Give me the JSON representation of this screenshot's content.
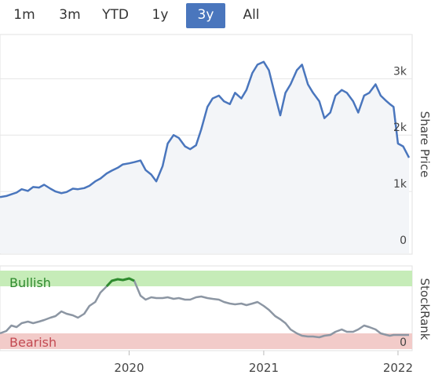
{
  "range_tabs": [
    {
      "label": "1m",
      "active": false
    },
    {
      "label": "3m",
      "active": false
    },
    {
      "label": "YTD",
      "active": false
    },
    {
      "label": "1y",
      "active": false
    },
    {
      "label": "3y",
      "active": true
    },
    {
      "label": "All",
      "active": false
    }
  ],
  "colors": {
    "accent": "#4a76bd",
    "price_line": "#4a76bd",
    "price_fill": "#f3f5f8",
    "rank_line": "#8c96a3",
    "rank_bullish_line": "#2e8b2e",
    "bullish_band": "#c6ecb8",
    "bearish_band": "#f2cbc9",
    "bullish_text": "#2f8a2f",
    "bearish_text": "#c34a52"
  },
  "chart_data": [
    {
      "type": "line",
      "ylabel": "Share Price",
      "ylim": [
        0,
        3700
      ],
      "y_ticks": [
        {
          "value": 0,
          "label": "0"
        },
        {
          "value": 1000,
          "label": "1k"
        },
        {
          "value": 2000,
          "label": "2k"
        },
        {
          "value": 3000,
          "label": "3k"
        }
      ],
      "grid": true,
      "xlim": [
        "2019-01-15",
        "2022-01-31"
      ],
      "series": [
        {
          "x": [
            "2019-01-15",
            "2019-02-01",
            "2019-02-15",
            "2019-03-01",
            "2019-03-15",
            "2019-04-01",
            "2019-04-15",
            "2019-05-01",
            "2019-05-15",
            "2019-06-01",
            "2019-06-15",
            "2019-07-01",
            "2019-07-15",
            "2019-08-01",
            "2019-08-15",
            "2019-09-01",
            "2019-09-15",
            "2019-10-01",
            "2019-10-15",
            "2019-11-01",
            "2019-11-15",
            "2019-12-01",
            "2019-12-15",
            "2020-01-01",
            "2020-01-15",
            "2020-02-01",
            "2020-02-15",
            "2020-03-01",
            "2020-03-15",
            "2020-04-01",
            "2020-04-15",
            "2020-05-01",
            "2020-05-15",
            "2020-06-01",
            "2020-06-15",
            "2020-07-01",
            "2020-07-15",
            "2020-08-01",
            "2020-08-15",
            "2020-09-01",
            "2020-09-15",
            "2020-10-01",
            "2020-10-15",
            "2020-11-01",
            "2020-11-15",
            "2020-12-01",
            "2020-12-15",
            "2021-01-01",
            "2021-01-15",
            "2021-02-01",
            "2021-02-15",
            "2021-03-01",
            "2021-03-15",
            "2021-04-01",
            "2021-04-15",
            "2021-05-01",
            "2021-05-15",
            "2021-06-01",
            "2021-06-15",
            "2021-07-01",
            "2021-07-15",
            "2021-08-01",
            "2021-08-15",
            "2021-09-01",
            "2021-09-15",
            "2021-10-01",
            "2021-10-15",
            "2021-11-01",
            "2021-11-15",
            "2021-12-01",
            "2021-12-10",
            "2021-12-20",
            "2022-01-01",
            "2022-01-15",
            "2022-01-31"
          ],
          "y": [
            900,
            920,
            950,
            980,
            1040,
            1010,
            1080,
            1070,
            1120,
            1050,
            1000,
            970,
            990,
            1050,
            1040,
            1060,
            1100,
            1180,
            1230,
            1320,
            1370,
            1420,
            1480,
            1500,
            1520,
            1550,
            1380,
            1300,
            1180,
            1450,
            1850,
            2000,
            1950,
            1800,
            1750,
            1820,
            2100,
            2500,
            2650,
            2700,
            2600,
            2550,
            2750,
            2650,
            2800,
            3100,
            3250,
            3300,
            3150,
            2700,
            2350,
            2750,
            2900,
            3150,
            3250,
            2900,
            2750,
            2600,
            2300,
            2400,
            2700,
            2800,
            2750,
            2600,
            2400,
            2700,
            2750,
            2900,
            2700,
            2600,
            2550,
            2500,
            1850,
            1800,
            1600
          ]
        }
      ]
    },
    {
      "type": "line",
      "ylabel": "StockRank",
      "ylim": [
        0,
        100
      ],
      "y_ticks": [
        {
          "value": 0,
          "label": "0"
        }
      ],
      "bands": [
        {
          "label": "Bullish",
          "from": 80,
          "to": 100
        },
        {
          "label": "Bearish",
          "from": 0,
          "to": 20
        }
      ],
      "x_ticks": [
        "2020",
        "2021",
        "2022"
      ],
      "x_tick_dates": [
        "2020-01-01",
        "2021-01-01",
        "2022-01-01"
      ],
      "bullish_threshold": 80,
      "series": [
        {
          "x": [
            "2019-01-15",
            "2019-02-01",
            "2019-02-15",
            "2019-03-01",
            "2019-03-15",
            "2019-04-01",
            "2019-04-15",
            "2019-05-01",
            "2019-05-15",
            "2019-06-01",
            "2019-06-15",
            "2019-07-01",
            "2019-07-15",
            "2019-08-01",
            "2019-08-15",
            "2019-09-01",
            "2019-09-15",
            "2019-10-01",
            "2019-10-15",
            "2019-11-01",
            "2019-11-15",
            "2019-12-01",
            "2019-12-15",
            "2020-01-01",
            "2020-01-15",
            "2020-02-01",
            "2020-02-15",
            "2020-03-01",
            "2020-03-15",
            "2020-04-01",
            "2020-04-15",
            "2020-05-01",
            "2020-05-15",
            "2020-06-01",
            "2020-06-15",
            "2020-07-01",
            "2020-07-15",
            "2020-08-01",
            "2020-08-15",
            "2020-09-01",
            "2020-09-15",
            "2020-10-01",
            "2020-10-15",
            "2020-11-01",
            "2020-11-15",
            "2020-12-01",
            "2020-12-15",
            "2021-01-01",
            "2021-01-15",
            "2021-02-01",
            "2021-02-15",
            "2021-03-01",
            "2021-03-15",
            "2021-04-01",
            "2021-04-15",
            "2021-05-01",
            "2021-05-15",
            "2021-06-01",
            "2021-06-15",
            "2021-07-01",
            "2021-07-15",
            "2021-08-01",
            "2021-08-15",
            "2021-09-01",
            "2021-09-15",
            "2021-10-01",
            "2021-10-15",
            "2021-11-01",
            "2021-11-15",
            "2021-12-01",
            "2021-12-10",
            "2021-12-20",
            "2022-01-01",
            "2022-01-15",
            "2022-01-31"
          ],
          "y": [
            20,
            23,
            30,
            28,
            33,
            35,
            33,
            35,
            37,
            40,
            42,
            48,
            45,
            43,
            40,
            45,
            55,
            60,
            72,
            80,
            87,
            89,
            88,
            90,
            87,
            68,
            63,
            66,
            65,
            65,
            66,
            64,
            65,
            63,
            63,
            66,
            67,
            65,
            64,
            63,
            60,
            58,
            57,
            58,
            56,
            58,
            60,
            55,
            50,
            42,
            38,
            33,
            25,
            20,
            17,
            16,
            16,
            15,
            17,
            18,
            22,
            25,
            22,
            22,
            25,
            30,
            28,
            25,
            20,
            18,
            17,
            18,
            18,
            18,
            18
          ]
        }
      ]
    }
  ]
}
